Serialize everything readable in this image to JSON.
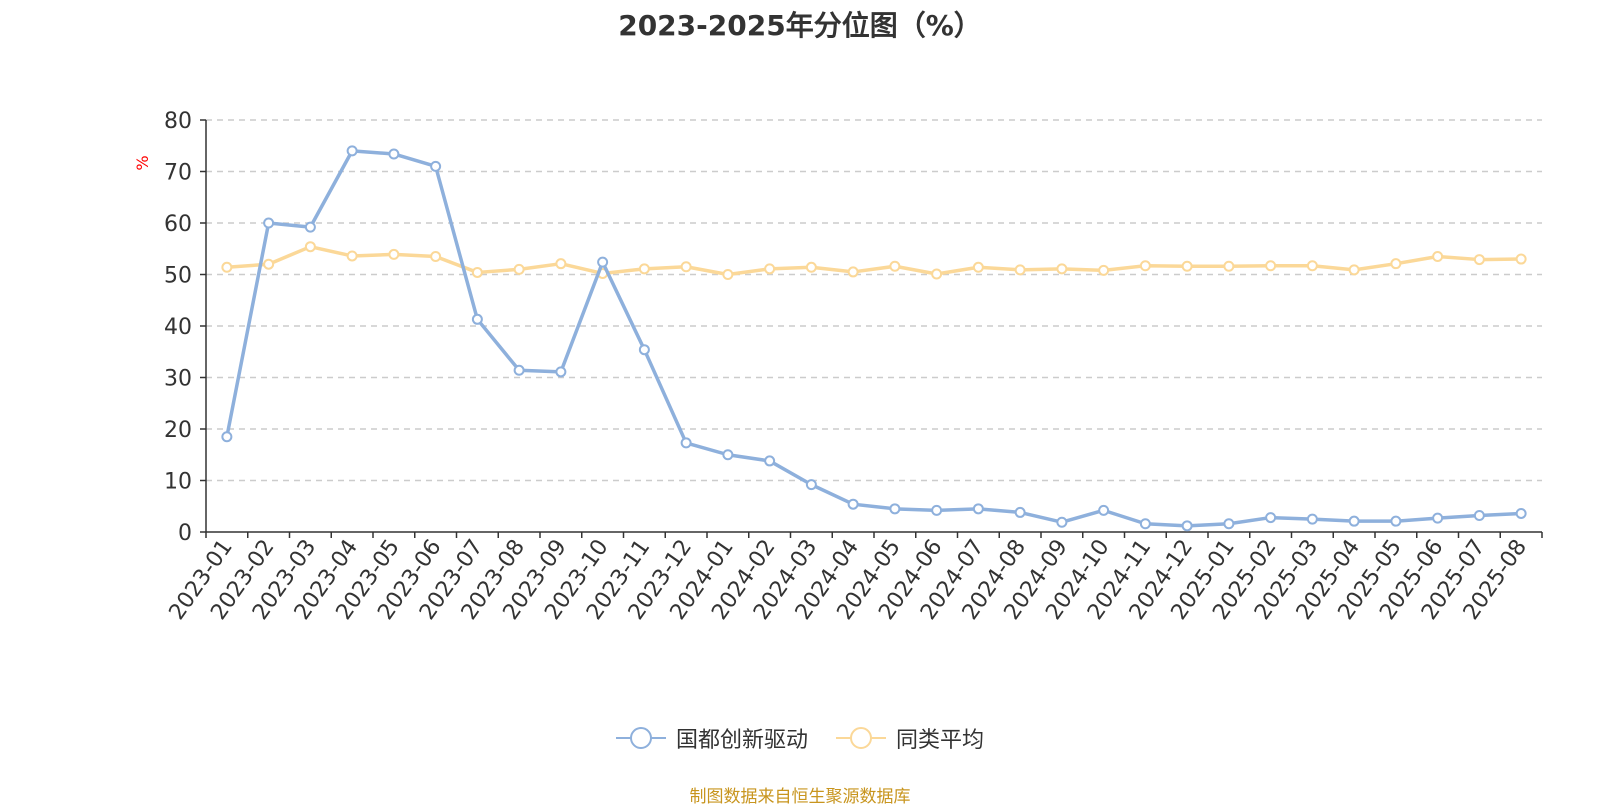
{
  "chart_data": {
    "type": "line",
    "title": "2023-2025年分位图（%）",
    "ylabel": "%",
    "xlabel": "",
    "ylim": [
      0,
      80
    ],
    "yticks": [
      0,
      10,
      20,
      30,
      40,
      50,
      60,
      70,
      80
    ],
    "grid": true,
    "legend_position": "bottom",
    "categories": [
      "2023-01",
      "2023-02",
      "2023-03",
      "2023-04",
      "2023-05",
      "2023-06",
      "2023-07",
      "2023-08",
      "2023-09",
      "2023-10",
      "2023-11",
      "2023-12",
      "2024-01",
      "2024-02",
      "2024-03",
      "2024-04",
      "2024-05",
      "2024-06",
      "2024-07",
      "2024-08",
      "2024-09",
      "2024-10",
      "2024-11",
      "2024-12",
      "2025-01",
      "2025-02",
      "2025-03",
      "2025-04",
      "2025-05",
      "2025-06",
      "2025-07",
      "2025-08"
    ],
    "series": [
      {
        "name": "国都创新驱动",
        "color": "#8eb0dc",
        "values": [
          18.5,
          60.0,
          59.2,
          74.0,
          73.4,
          71.0,
          41.3,
          31.4,
          31.1,
          52.4,
          35.4,
          17.3,
          15.0,
          13.8,
          9.2,
          5.4,
          4.5,
          4.2,
          4.5,
          3.8,
          1.9,
          4.2,
          1.6,
          1.2,
          1.6,
          2.8,
          2.5,
          2.1,
          2.1,
          2.7,
          3.2,
          3.6
        ]
      },
      {
        "name": "同类平均",
        "color": "#fbd898",
        "values": [
          51.4,
          52.0,
          55.4,
          53.6,
          53.9,
          53.5,
          50.4,
          51.0,
          52.1,
          50.2,
          51.1,
          51.5,
          50.0,
          51.1,
          51.4,
          50.5,
          51.6,
          50.1,
          51.4,
          50.9,
          51.1,
          50.8,
          51.7,
          51.6,
          51.6,
          51.7,
          51.7,
          50.9,
          52.1,
          53.5,
          52.9,
          53.0
        ]
      }
    ]
  },
  "footer": {
    "source_note": "制图数据来自恒生聚源数据库"
  }
}
